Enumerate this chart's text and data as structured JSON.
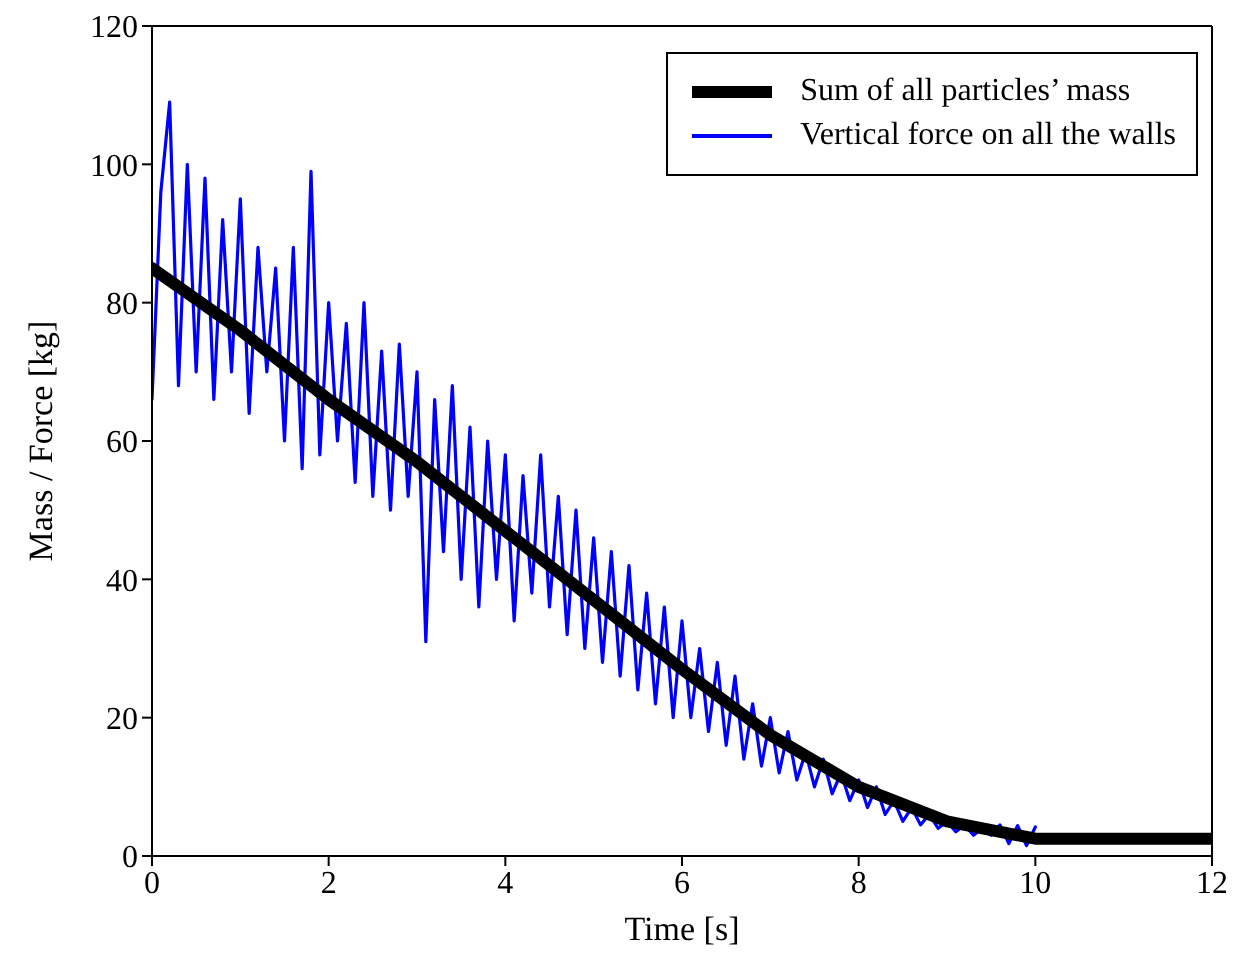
{
  "chart_data": {
    "type": "line",
    "xlabel": "Time  [s]",
    "ylabel": "Mass / Force  [kg]",
    "xlim": [
      0,
      12
    ],
    "xticks": [
      0,
      2,
      4,
      6,
      8,
      10,
      12
    ],
    "ylim": [
      0,
      120
    ],
    "yticks": [
      0,
      20,
      40,
      60,
      80,
      100,
      120
    ],
    "legend": "top right",
    "line_style": "solid",
    "marker": "none",
    "series": [
      {
        "name": "Sum of all particles’ mass",
        "color": "#000000",
        "x": [
          0,
          1,
          2,
          3,
          4,
          5,
          6,
          7,
          8,
          9,
          10,
          11,
          12
        ],
        "values": [
          85,
          76,
          66,
          57,
          47,
          37,
          27,
          17.5,
          10,
          5,
          2.5,
          2.5,
          2.5
        ]
      },
      {
        "name": "Vertical force on all the walls",
        "color": "#0000ff",
        "x": [
          0,
          0.1,
          0.2,
          0.3,
          0.4,
          0.5,
          0.6,
          0.7,
          0.8,
          0.9,
          1,
          1.1,
          1.2,
          1.3,
          1.4,
          1.5,
          1.6,
          1.7,
          1.8,
          1.9,
          2,
          2.1,
          2.2,
          2.3,
          2.4,
          2.5,
          2.6,
          2.7,
          2.8,
          2.9,
          3,
          3.1,
          3.2,
          3.3,
          3.4,
          3.5,
          3.6,
          3.7,
          3.8,
          3.9,
          4,
          4.1,
          4.2,
          4.3,
          4.4,
          4.5,
          4.6,
          4.7,
          4.8,
          4.9,
          5,
          5.1,
          5.2,
          5.3,
          5.4,
          5.5,
          5.6,
          5.7,
          5.8,
          5.9,
          6,
          6.1,
          6.2,
          6.3,
          6.4,
          6.5,
          6.6,
          6.7,
          6.8,
          6.9,
          7,
          7.1,
          7.2,
          7.3,
          7.4,
          7.5,
          7.6,
          7.7,
          7.8,
          7.9,
          8,
          8.1,
          8.2,
          8.3,
          8.4,
          8.5,
          8.6,
          8.7,
          8.8,
          8.9,
          9,
          9.1,
          9.2,
          9.3,
          9.4,
          9.5,
          9.6,
          9.7,
          9.8,
          9.9,
          10
        ],
        "values": [
          66,
          96,
          109,
          68,
          100,
          70,
          98,
          66,
          92,
          70,
          95,
          64,
          88,
          70,
          85,
          60,
          88,
          56,
          99,
          58,
          80,
          60,
          77,
          54,
          80,
          52,
          73,
          50,
          74,
          52,
          70,
          31,
          66,
          44,
          68,
          40,
          62,
          36,
          60,
          40,
          58,
          34,
          55,
          38,
          58,
          36,
          52,
          32,
          50,
          30,
          46,
          28,
          44,
          26,
          42,
          24,
          38,
          22,
          36,
          20,
          34,
          20,
          30,
          18,
          28,
          16,
          26,
          14,
          22,
          13,
          20,
          12,
          18,
          11,
          15,
          10,
          14,
          9,
          12,
          8,
          11,
          7,
          10,
          6,
          8,
          5,
          7,
          4.5,
          6,
          4,
          5,
          3.5,
          4.5,
          3,
          4,
          3,
          4.5,
          1.8,
          4.4,
          1.5,
          4.2
        ]
      }
    ]
  }
}
